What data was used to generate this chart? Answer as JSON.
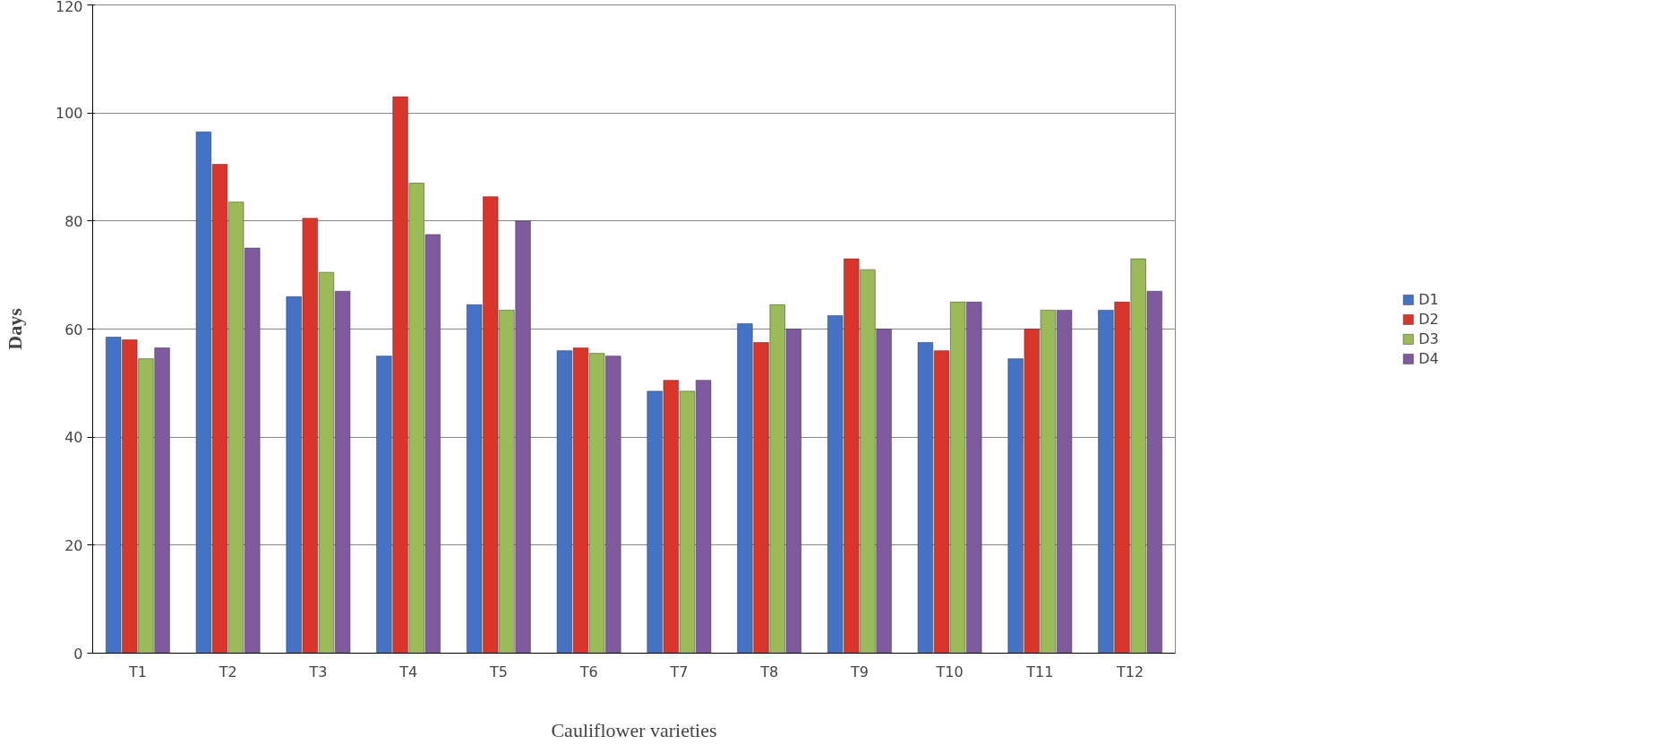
{
  "chart_data": {
    "type": "bar",
    "xlabel": "Cauliflower varieties",
    "ylabel": "Days",
    "categories": [
      "T1",
      "T2",
      "T3",
      "T4",
      "T5",
      "T6",
      "T7",
      "T8",
      "T9",
      "T10",
      "T11",
      "T12"
    ],
    "series": [
      {
        "name": "D1",
        "color": "#4472c4",
        "values": [
          58.5,
          96.5,
          66,
          55,
          64.5,
          56,
          48.5,
          61,
          62.5,
          57.5,
          54.5,
          63.5
        ]
      },
      {
        "name": "D2",
        "color": "#d9352a",
        "values": [
          58,
          90.5,
          80.5,
          103,
          84.5,
          56.5,
          50.5,
          57.5,
          73,
          56,
          60,
          65
        ]
      },
      {
        "name": "D3",
        "color": "#9bbb59",
        "values": [
          54.5,
          83.5,
          70.5,
          87,
          63.5,
          55.5,
          48.5,
          64.5,
          71,
          65,
          63.5,
          73
        ]
      },
      {
        "name": "D4",
        "color": "#7f5a9e",
        "values": [
          56.5,
          75,
          67,
          77.5,
          80,
          55,
          50.5,
          60,
          60,
          65,
          63.5,
          67
        ]
      }
    ],
    "ylim": [
      0,
      120
    ],
    "yticks": [
      0,
      20,
      40,
      60,
      80,
      100,
      120
    ],
    "grid": "y",
    "legend": "right"
  }
}
